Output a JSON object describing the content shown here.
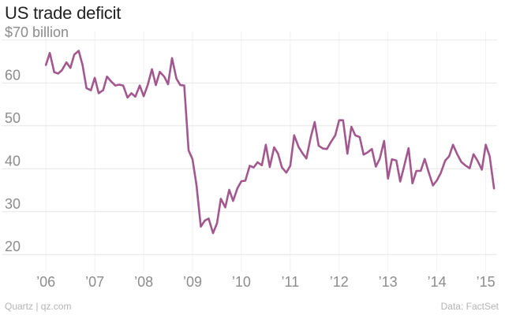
{
  "chart_data": {
    "type": "line",
    "title": "US trade deficit",
    "xlabel": "",
    "ylabel": "",
    "unit": "$70 billion",
    "xlim": [
      2005.9,
      2015.2
    ],
    "ylim": [
      16,
      72
    ],
    "y_ticks": [
      20,
      30,
      40,
      50,
      60,
      70
    ],
    "y_tick_labels": [
      "20",
      "30",
      "40",
      "50",
      "60",
      "$70 billion"
    ],
    "x_ticks": [
      2006,
      2007,
      2008,
      2009,
      2010,
      2011,
      2012,
      2013,
      2014,
      2015
    ],
    "x_tick_labels": [
      "’06",
      "’07",
      "’08",
      "’09",
      "’10",
      "’11",
      "’12",
      "’13",
      "’14",
      "’15"
    ],
    "grid": true,
    "series": [
      {
        "color": "#a3578f",
        "points": [
          [
            2006.0,
            64.2
          ],
          [
            2006.08,
            67.0
          ],
          [
            2006.17,
            62.5
          ],
          [
            2006.25,
            62.2
          ],
          [
            2006.33,
            63.0
          ],
          [
            2006.42,
            64.8
          ],
          [
            2006.5,
            63.5
          ],
          [
            2006.58,
            66.6
          ],
          [
            2006.67,
            67.5
          ],
          [
            2006.75,
            64.2
          ],
          [
            2006.83,
            58.8
          ],
          [
            2006.92,
            58.3
          ],
          [
            2007.0,
            61.2
          ],
          [
            2007.08,
            57.6
          ],
          [
            2007.17,
            58.3
          ],
          [
            2007.25,
            61.5
          ],
          [
            2007.33,
            60.4
          ],
          [
            2007.42,
            59.4
          ],
          [
            2007.5,
            59.6
          ],
          [
            2007.58,
            59.4
          ],
          [
            2007.67,
            56.6
          ],
          [
            2007.75,
            57.6
          ],
          [
            2007.83,
            56.8
          ],
          [
            2007.92,
            59.4
          ],
          [
            2008.0,
            56.9
          ],
          [
            2008.08,
            59.4
          ],
          [
            2008.17,
            63.2
          ],
          [
            2008.25,
            59.5
          ],
          [
            2008.33,
            62.6
          ],
          [
            2008.42,
            61.5
          ],
          [
            2008.5,
            59.7
          ],
          [
            2008.58,
            65.8
          ],
          [
            2008.67,
            61.0
          ],
          [
            2008.75,
            59.5
          ],
          [
            2008.83,
            59.4
          ],
          [
            2008.92,
            44.3
          ],
          [
            2009.0,
            42.2
          ],
          [
            2009.08,
            36.2
          ],
          [
            2009.17,
            26.5
          ],
          [
            2009.25,
            27.9
          ],
          [
            2009.33,
            28.4
          ],
          [
            2009.42,
            25.0
          ],
          [
            2009.5,
            27.3
          ],
          [
            2009.58,
            33.0
          ],
          [
            2009.67,
            31.0
          ],
          [
            2009.75,
            35.1
          ],
          [
            2009.83,
            32.5
          ],
          [
            2009.92,
            35.5
          ],
          [
            2010.0,
            37.1
          ],
          [
            2010.08,
            37.2
          ],
          [
            2010.17,
            40.7
          ],
          [
            2010.25,
            40.3
          ],
          [
            2010.33,
            41.5
          ],
          [
            2010.42,
            40.8
          ],
          [
            2010.5,
            45.6
          ],
          [
            2010.58,
            40.4
          ],
          [
            2010.67,
            45.0
          ],
          [
            2010.75,
            43.5
          ],
          [
            2010.83,
            40.3
          ],
          [
            2010.92,
            39.1
          ],
          [
            2011.0,
            40.7
          ],
          [
            2011.08,
            47.8
          ],
          [
            2011.17,
            45.1
          ],
          [
            2011.25,
            43.6
          ],
          [
            2011.33,
            42.4
          ],
          [
            2011.42,
            47.4
          ],
          [
            2011.5,
            50.9
          ],
          [
            2011.58,
            45.4
          ],
          [
            2011.67,
            44.7
          ],
          [
            2011.75,
            44.6
          ],
          [
            2011.83,
            46.2
          ],
          [
            2011.92,
            47.8
          ],
          [
            2012.0,
            51.3
          ],
          [
            2012.08,
            51.3
          ],
          [
            2012.17,
            43.5
          ],
          [
            2012.25,
            49.8
          ],
          [
            2012.33,
            47.8
          ],
          [
            2012.42,
            47.4
          ],
          [
            2012.5,
            43.3
          ],
          [
            2012.58,
            43.8
          ],
          [
            2012.67,
            44.6
          ],
          [
            2012.75,
            40.5
          ],
          [
            2012.83,
            42.3
          ],
          [
            2012.92,
            46.5
          ],
          [
            2013.0,
            37.7
          ],
          [
            2013.08,
            42.2
          ],
          [
            2013.17,
            41.9
          ],
          [
            2013.25,
            37.0
          ],
          [
            2013.33,
            40.6
          ],
          [
            2013.42,
            44.8
          ],
          [
            2013.5,
            36.6
          ],
          [
            2013.58,
            39.5
          ],
          [
            2013.67,
            39.5
          ],
          [
            2013.75,
            42.3
          ],
          [
            2013.83,
            39.3
          ],
          [
            2013.92,
            36.1
          ],
          [
            2014.0,
            37.3
          ],
          [
            2014.08,
            39.0
          ],
          [
            2014.17,
            41.9
          ],
          [
            2014.25,
            42.9
          ],
          [
            2014.33,
            45.6
          ],
          [
            2014.42,
            43.3
          ],
          [
            2014.5,
            41.6
          ],
          [
            2014.58,
            40.8
          ],
          [
            2014.67,
            40.1
          ],
          [
            2014.75,
            43.4
          ],
          [
            2014.83,
            41.9
          ],
          [
            2014.92,
            39.8
          ],
          [
            2015.0,
            45.6
          ],
          [
            2015.08,
            42.9
          ],
          [
            2015.17,
            35.4
          ]
        ]
      }
    ]
  },
  "footer": {
    "source_left": "Quartz | qz.com",
    "source_right": "Data: FactSet"
  }
}
